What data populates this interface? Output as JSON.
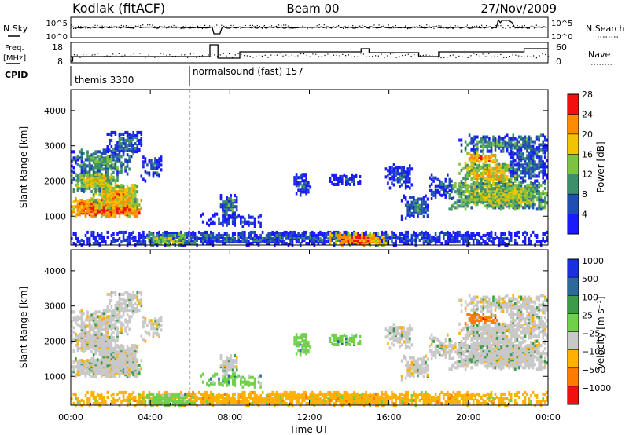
{
  "header": {
    "station": "Kodiak (fitACF)",
    "beam": "Beam 00",
    "date": "27/Nov/2009"
  },
  "top_panel": {
    "left_label": "N.Sky",
    "right_label": "N.Search",
    "left_ticks": [
      "10^5",
      "10^0"
    ],
    "right_ticks": [
      "10^5",
      "10^0"
    ]
  },
  "freq_panel": {
    "left_label_line1": "Freq.",
    "left_label_line2": "[MHz]",
    "right_label": "Nave",
    "left_ticks": [
      "18",
      "8"
    ],
    "right_ticks": [
      "60",
      "0"
    ]
  },
  "cpid": {
    "label": "CPID",
    "segments": [
      {
        "start_hour": 0,
        "text": "themis 3300"
      },
      {
        "start_hour": 6,
        "text": "normalsound (fast) 157"
      }
    ]
  },
  "chart_data": [
    {
      "type": "heatmap",
      "name": "Power",
      "ylabel": "Slant Range [km]",
      "xlabel": "Time UT",
      "xlim_hours": [
        0,
        24
      ],
      "ylim_km": [
        180,
        4600
      ],
      "x_ticks": [
        "00:00",
        "04:00",
        "08:00",
        "12:00",
        "16:00",
        "20:00",
        "00:00"
      ],
      "y_ticks": [
        1000,
        2000,
        3000,
        4000
      ],
      "colorbar_label": "Power [dB]",
      "colorbar_ticks": [
        "4",
        "8",
        "12",
        "16",
        "20",
        "24",
        "28"
      ],
      "colorbar_colors": [
        "#1a1aff",
        "#1f4fb0",
        "#3c8f6a",
        "#7dc241",
        "#f2c300",
        "#ff8c00",
        "#f01010"
      ]
    },
    {
      "type": "heatmap",
      "name": "Velocity",
      "ylabel": "Slant Range [km]",
      "xlabel": "Time UT",
      "xlim_hours": [
        0,
        24
      ],
      "ylim_km": [
        180,
        4600
      ],
      "x_ticks": [
        "00:00",
        "04:00",
        "08:00",
        "12:00",
        "16:00",
        "20:00",
        "00:00"
      ],
      "y_ticks": [
        1000,
        2000,
        3000,
        4000
      ],
      "colorbar_label": "Velocity [m s⁻¹]",
      "colorbar_ticks": [
        "1000",
        "500",
        "100",
        "25",
        "−25",
        "−100",
        "−500",
        "−1000"
      ],
      "colorbar_colors": [
        "#1a2fe0",
        "#2d6a9a",
        "#3c9a4a",
        "#6fd04a",
        "#c8c8c8",
        "#ffb000",
        "#ff7a00",
        "#f01010"
      ]
    }
  ],
  "x_axis_title": "Time UT"
}
